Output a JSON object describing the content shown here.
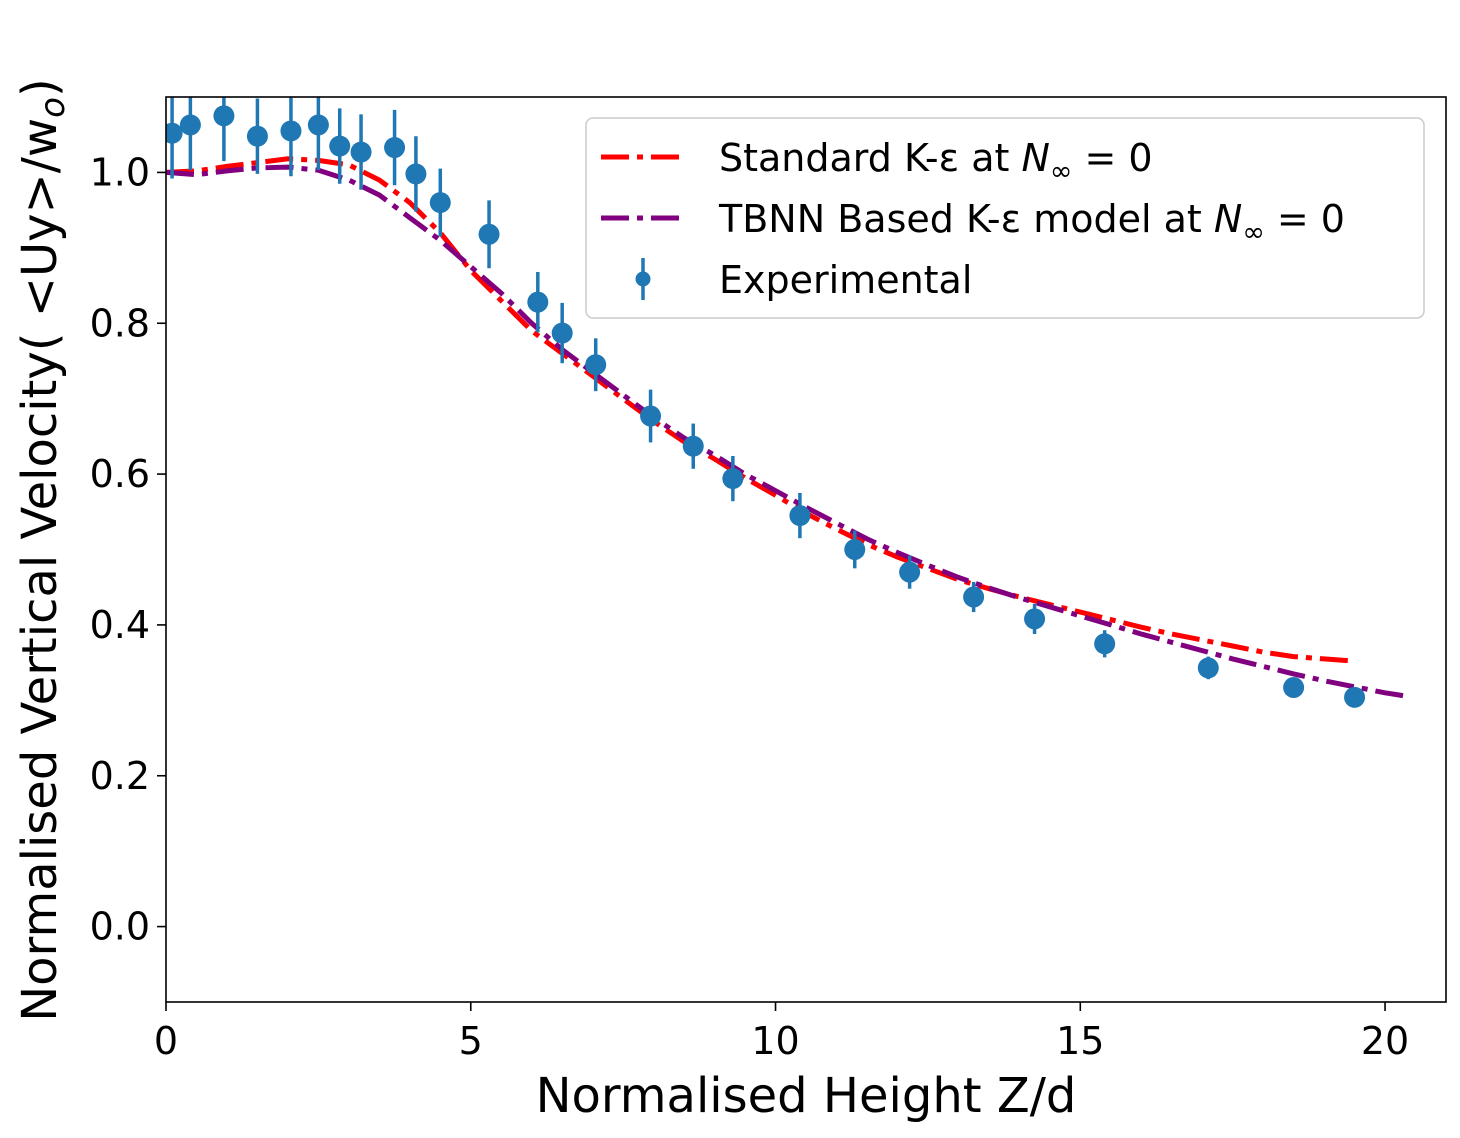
{
  "chart_data": {
    "type": "line",
    "xlabel": "Normalised Height Z/d",
    "ylabel": "Normalised Vertical Velocity( <Uy>/w",
    "ylabel_sub": "o",
    "ylabel_tail": ")",
    "xlim": [
      0,
      21
    ],
    "ylim": [
      -0.1,
      1.1
    ],
    "xticks": [
      0,
      5,
      10,
      15,
      20
    ],
    "yticks": [
      0.0,
      0.2,
      0.4,
      0.6,
      0.8,
      1.0
    ],
    "xtick_labels": [
      "0",
      "5",
      "10",
      "15",
      "20"
    ],
    "ytick_labels": [
      "0.0",
      "0.2",
      "0.4",
      "0.6",
      "0.8",
      "1.0"
    ],
    "grid": false,
    "legend_placement": "top-right",
    "legend": [
      {
        "prefix": "Standard K-ε at ",
        "italic": "N",
        "sub": "∞",
        "suffix": " = 0",
        "kind": "line",
        "color": "#ff0000"
      },
      {
        "prefix": "TBNN Based K-ε model at ",
        "italic": "N",
        "sub": "∞",
        "suffix": " = 0",
        "kind": "line",
        "color": "#800080"
      },
      {
        "prefix": "Experimental",
        "italic": "",
        "sub": "",
        "suffix": "",
        "kind": "errorbar",
        "color": "#1f77b4"
      }
    ],
    "series": [
      {
        "name": "Standard K-ε at N∞ = 0",
        "color": "#ff0000",
        "style": "dashdot",
        "x": [
          0,
          0.5,
          1.0,
          1.5,
          2.0,
          2.5,
          3.0,
          3.5,
          4.0,
          4.5,
          5.0,
          5.5,
          6.0,
          6.5,
          7.0,
          7.5,
          8.0,
          8.5,
          9.0,
          9.5,
          10.0,
          10.5,
          11.0,
          11.5,
          12.0,
          12.5,
          13.0,
          13.5,
          14.0,
          14.5,
          15.0,
          15.5,
          16.0,
          16.5,
          17.0,
          17.5,
          18.0,
          18.5,
          19.0,
          19.5
        ],
        "y": [
          1.0,
          1.002,
          1.008,
          1.013,
          1.018,
          1.016,
          1.01,
          0.99,
          0.96,
          0.92,
          0.87,
          0.83,
          0.79,
          0.76,
          0.73,
          0.7,
          0.67,
          0.643,
          0.62,
          0.595,
          0.572,
          0.548,
          0.527,
          0.507,
          0.49,
          0.475,
          0.46,
          0.448,
          0.437,
          0.427,
          0.417,
          0.407,
          0.397,
          0.388,
          0.38,
          0.372,
          0.364,
          0.358,
          0.355,
          0.352
        ]
      },
      {
        "name": "TBNN Based K-ε model at N∞ = 0",
        "color": "#800080",
        "style": "dashdot",
        "x": [
          0,
          0.5,
          1.0,
          1.5,
          2.0,
          2.5,
          3.0,
          3.5,
          4.0,
          4.5,
          5.0,
          5.5,
          6.0,
          6.5,
          7.0,
          7.5,
          8.0,
          8.5,
          9.0,
          9.5,
          10.0,
          10.5,
          11.0,
          11.5,
          12.0,
          12.5,
          13.0,
          13.5,
          14.0,
          14.5,
          15.0,
          15.5,
          16.0,
          16.5,
          17.0,
          17.5,
          18.0,
          18.5,
          19.0,
          19.5,
          20.0,
          20.4
        ],
        "y": [
          1.0,
          0.997,
          1.002,
          1.006,
          1.007,
          1.003,
          0.99,
          0.97,
          0.94,
          0.91,
          0.875,
          0.84,
          0.8,
          0.765,
          0.735,
          0.705,
          0.675,
          0.648,
          0.625,
          0.6,
          0.578,
          0.556,
          0.535,
          0.514,
          0.496,
          0.479,
          0.463,
          0.449,
          0.436,
          0.424,
          0.412,
          0.4,
          0.388,
          0.377,
          0.366,
          0.355,
          0.345,
          0.335,
          0.326,
          0.318,
          0.31,
          0.305
        ]
      }
    ],
    "errorbar_series": {
      "name": "Experimental",
      "color": "#1f77b4",
      "x": [
        0.1,
        0.4,
        0.95,
        1.5,
        2.05,
        2.5,
        2.85,
        3.2,
        3.75,
        4.1,
        4.5,
        5.3,
        6.1,
        6.5,
        7.05,
        7.95,
        8.65,
        9.3,
        10.4,
        11.3,
        12.2,
        13.25,
        14.25,
        15.4,
        17.1,
        18.5,
        19.5
      ],
      "y": [
        1.052,
        1.063,
        1.075,
        1.048,
        1.055,
        1.063,
        1.035,
        1.027,
        1.033,
        0.998,
        0.96,
        0.918,
        0.828,
        0.787,
        0.745,
        0.677,
        0.637,
        0.594,
        0.545,
        0.5,
        0.47,
        0.437,
        0.408,
        0.375,
        0.343,
        0.317,
        0.304
      ],
      "err": [
        0.06,
        0.06,
        0.06,
        0.05,
        0.06,
        0.06,
        0.05,
        0.05,
        0.05,
        0.05,
        0.045,
        0.045,
        0.04,
        0.04,
        0.035,
        0.035,
        0.03,
        0.03,
        0.03,
        0.025,
        0.022,
        0.02,
        0.02,
        0.018,
        0.015,
        0.012,
        0.012
      ]
    }
  }
}
